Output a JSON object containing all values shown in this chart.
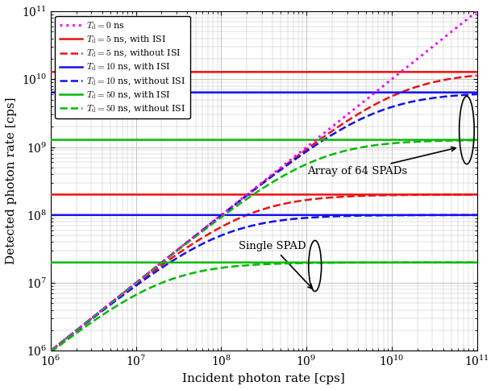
{
  "title": "",
  "xlabel": "Incident photon rate [cps]",
  "ylabel": "Detected photon rate [cps]",
  "xlim_log": [
    6,
    11
  ],
  "ylim_log": [
    6,
    11
  ],
  "N_spads": 64,
  "dead_times_ns": [
    5,
    10,
    50
  ],
  "colors": {
    "Td0": "#FF00FF",
    "Td5": "#EE1111",
    "Td10": "#1111EE",
    "Td50": "#00BB00"
  },
  "legend_labels": {
    "Td0": "$T_\\mathrm{d} = 0$ ns",
    "Td5_ISI": "$T_\\mathrm{d} = 5$ ns, with ISI",
    "Td10_ISI": "$T_\\mathrm{d} = 10$ ns, with ISI",
    "Td50_ISI": "$T_\\mathrm{d} = 50$ ns, with ISI",
    "Td5_noISI": "$T_\\mathrm{d} = 5$ ns, without ISI",
    "Td10_noISI": "$T_\\mathrm{d} = 10$ ns, without ISI",
    "Td50_noISI": "$T_\\mathrm{d} = 50$ ns, without ISI"
  },
  "annotation_array": "Array of 64 SPADs",
  "annotation_single": "Single SPAD",
  "bg_color": "#FFFFFF",
  "grid_color": "#BBBBBB",
  "lw": 1.8
}
